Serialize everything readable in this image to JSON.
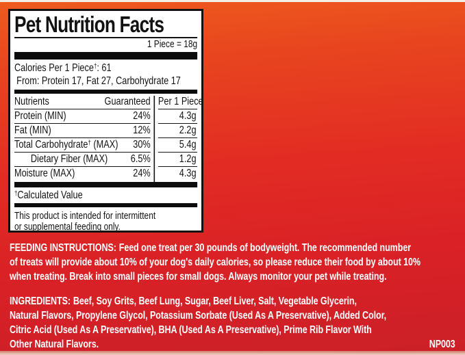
{
  "panel": {
    "title": "Pet Nutrition Facts",
    "serving_size": "1 Piece = 18g",
    "calories": {
      "pre": "Calories Per 1 Piece",
      "dagger": "†",
      "post": ": 61"
    },
    "calories_from": "From: Protein 17, Fat 27, Carbohydrate 17",
    "table": {
      "header": {
        "nutrients": "Nutrients",
        "guaranteed": "Guaranteed",
        "per_piece": "Per 1 Piece"
      },
      "rows": [
        {
          "name": "Protein (MIN)",
          "dagger": "",
          "name_suffix": "",
          "guaranteed": "24%",
          "per_piece": "4.3g"
        },
        {
          "name": "Fat (MIN)",
          "dagger": "",
          "name_suffix": "",
          "guaranteed": "12%",
          "per_piece": "2.2g"
        },
        {
          "name": "Total Carbohydrate",
          "dagger": "†",
          "name_suffix": " (MAX)",
          "guaranteed": "30%",
          "per_piece": "5.4g"
        },
        {
          "name": "Dietary Fiber (MAX)",
          "dagger": "",
          "name_suffix": "",
          "guaranteed": "6.5%",
          "per_piece": "1.2g"
        },
        {
          "name": "Moisture (MAX)",
          "dagger": "",
          "name_suffix": "",
          "guaranteed": "24%",
          "per_piece": "4.3g"
        }
      ]
    },
    "footnote": {
      "dagger": "†",
      "text": "Calculated Value"
    },
    "disclaimer_lines": [
      "This product is intended for intermittent",
      "or supplemental feeding only."
    ]
  },
  "feeding_instructions": {
    "heading": "FEEDING INSTRUCTIONS:",
    "lines": [
      "Feed one treat per 30 pounds of bodyweight. The recommended number",
      "of treats will provide about 10% of your dog's daily calories, so please reduce their food by about 10%",
      "when treating. Break into small pieces for small dogs. Always monitor your pet while treating."
    ]
  },
  "ingredients": {
    "heading": "INGREDIENTS:",
    "lines": [
      "Beef, Soy Grits, Beef Lung, Sugar, Beef Liver, Salt, Vegetable Glycerin,",
      "Natural Flavors, Propylene Glycol, Potassium Sorbate (Used As A Preservative), Added Color,",
      "Citric Acid (Used As A Preservative), BHA (Used As A Preservative), Prime Rib Flavor With",
      "Other Natural Flavors."
    ]
  },
  "product_code": "NP003",
  "colors": {
    "background_top": "#ee5c1d",
    "background_bottom": "#cb2127",
    "panel_background": "#ffffff",
    "panel_border": "#121212",
    "text_on_red": "#ffffff",
    "bar_black": "#0c0c0c"
  }
}
